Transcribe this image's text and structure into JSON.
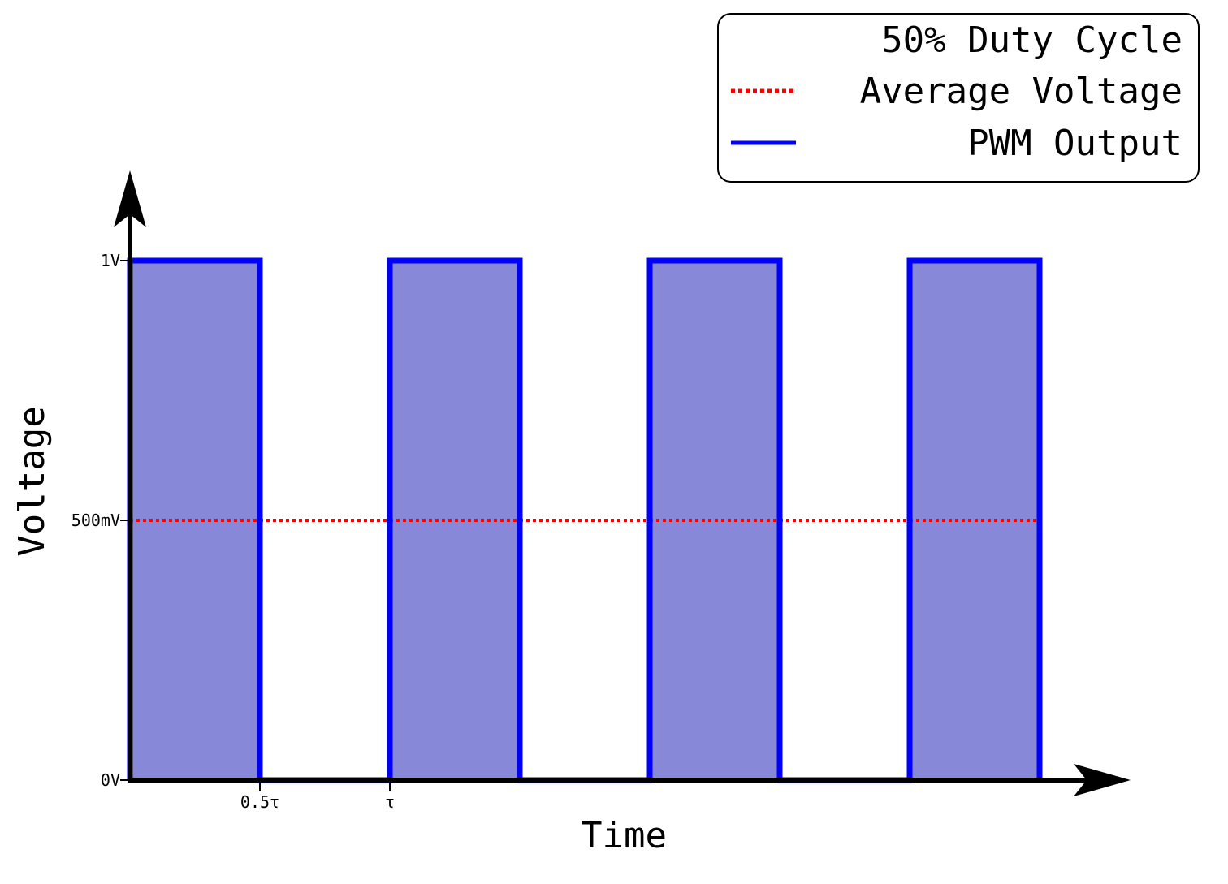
{
  "chart_data": {
    "type": "line",
    "title": "",
    "xlabel": "Time",
    "ylabel": "Voltage",
    "xlim": [
      0,
      3.5
    ],
    "ylim": [
      0,
      1
    ],
    "x_ticks": [
      {
        "value": 0.5,
        "label": "0.5τ"
      },
      {
        "value": 1,
        "label": "τ"
      }
    ],
    "y_ticks": [
      {
        "value": 0,
        "label": "0V"
      },
      {
        "value": 0.5,
        "label": "500mV"
      },
      {
        "value": 1,
        "label": "1V"
      }
    ],
    "legend": {
      "position": "top-right",
      "heading": "50% Duty Cycle",
      "entries": [
        {
          "label": "Average Voltage",
          "style": "dotted",
          "color": "#ff0000"
        },
        {
          "label": "PWM Output",
          "style": "solid",
          "color": "#0000ff"
        }
      ]
    },
    "series": [
      {
        "name": "PWM Output",
        "color": "#0000ff",
        "fill": "#8888d8",
        "x": [
          0,
          0,
          0.5,
          0.5,
          1,
          1,
          1.5,
          1.5,
          2,
          2,
          2.5,
          2.5,
          3,
          3,
          3.5,
          3.5
        ],
        "y": [
          0,
          1,
          1,
          0,
          0,
          1,
          1,
          0,
          0,
          1,
          1,
          0,
          0,
          1,
          1,
          0
        ]
      },
      {
        "name": "Average Voltage",
        "color": "#ff0000",
        "x": [
          0,
          3.5
        ],
        "y": [
          0.5,
          0.5
        ]
      }
    ]
  }
}
